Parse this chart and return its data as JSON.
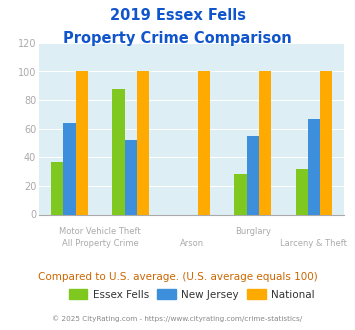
{
  "title_line1": "2019 Essex Fells",
  "title_line2": "Property Crime Comparison",
  "categories": [
    "All Property Crime",
    "Motor Vehicle Theft",
    "Arson",
    "Burglary",
    "Larceny & Theft"
  ],
  "series": {
    "Essex Fells": [
      37,
      88,
      0,
      28,
      32
    ],
    "New Jersey": [
      64,
      52,
      0,
      55,
      67
    ],
    "National": [
      100,
      100,
      100,
      100,
      100
    ]
  },
  "colors": {
    "Essex Fells": "#7ec820",
    "New Jersey": "#3d8fdb",
    "National": "#ffaa00"
  },
  "ylim": [
    0,
    120
  ],
  "yticks": [
    0,
    20,
    40,
    60,
    80,
    100,
    120
  ],
  "plot_bg_color": "#ddeef5",
  "fig_bg_color": "#ffffff",
  "title_color": "#1155cc",
  "subtitle_text": "Compared to U.S. average. (U.S. average equals 100)",
  "subtitle_color": "#cc6600",
  "footer_text": "© 2025 CityRating.com - https://www.cityrating.com/crime-statistics/",
  "footer_color": "#888888",
  "grid_color": "#ffffff",
  "axis_label_color": "#aaaaaa",
  "bar_width": 0.2,
  "legend_label_color": "#333333"
}
